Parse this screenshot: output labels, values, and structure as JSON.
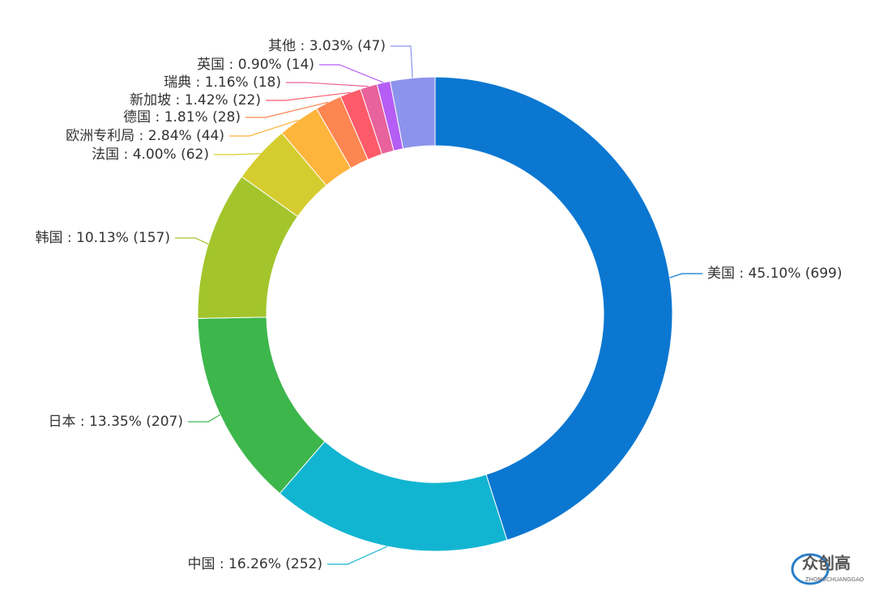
{
  "chart_data": {
    "type": "donut",
    "categories": [
      "美国",
      "中国",
      "日本",
      "韩国",
      "法国",
      "欧洲专利局",
      "德国",
      "新加坡",
      "瑞典",
      "英国",
      "其他"
    ],
    "values": [
      699,
      252,
      207,
      157,
      62,
      44,
      28,
      22,
      18,
      14,
      47
    ],
    "value_labels": [
      "美国 : 45.10% (699)",
      "中国 : 16.26% (252)",
      "日本 : 13.35% (207)",
      "韩国 : 10.13% (157)",
      "法国 : 4.00% (62)",
      "欧洲专利局 : 2.84% (44)",
      "德国 : 1.81% (28)",
      "新加坡 : 1.42% (22)",
      "瑞典 : 1.16% (18)",
      "英国 : 0.90% (14)",
      "其他 : 3.03% (47)"
    ],
    "colors": [
      "#0b77d1",
      "#12b5d1",
      "#3db64c",
      "#a3c52b",
      "#d5cd2f",
      "#fdb53c",
      "#fd8651",
      "#fd5a6a",
      "#e8629b",
      "#b55df5",
      "#8c93ec"
    ]
  },
  "watermark": {
    "title": "众创高",
    "subtitle": "ZHONGCHUANGGAO"
  }
}
